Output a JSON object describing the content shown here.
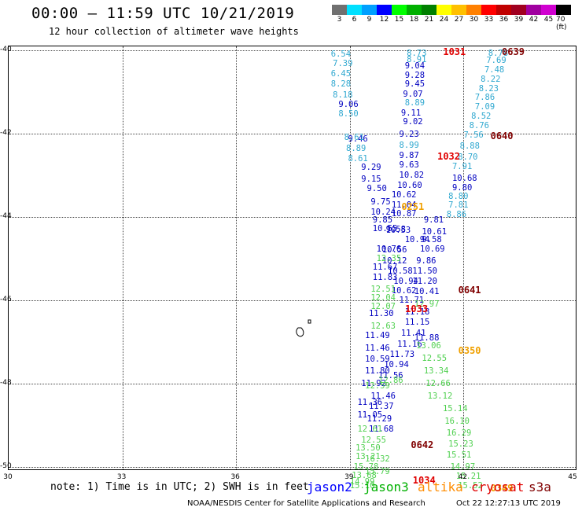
{
  "header": {
    "title": "00:00 – 11:59 UTC 10/21/2019",
    "subtitle": "12 hour collection of altimeter wave heights"
  },
  "scale": [
    {
      "label": "3",
      "color": "#707070"
    },
    {
      "label": "6",
      "color": "#00e0ff"
    },
    {
      "label": "9",
      "color": "#00a0ff"
    },
    {
      "label": "12",
      "color": "#0000ff"
    },
    {
      "label": "15",
      "color": "#00ff00"
    },
    {
      "label": "18",
      "color": "#00b000"
    },
    {
      "label": "21",
      "color": "#008000"
    },
    {
      "label": "24",
      "color": "#ffff00"
    },
    {
      "label": "27",
      "color": "#ffc000"
    },
    {
      "label": "30",
      "color": "#ff8000"
    },
    {
      "label": "33",
      "color": "#ff0000"
    },
    {
      "label": "36",
      "color": "#c00000"
    },
    {
      "label": "39",
      "color": "#a00020"
    },
    {
      "label": "42",
      "color": "#a000a0"
    },
    {
      "label": "45",
      "color": "#d000d0"
    },
    {
      "label": "70 (ft)",
      "color": "#000000"
    }
  ],
  "map": {
    "lat_labels": [
      "-40",
      "-42",
      "-44",
      "-46",
      "-48",
      "-50"
    ],
    "lon_labels": [
      "30",
      "33",
      "36",
      "39",
      "42",
      "45"
    ],
    "island_label": "D",
    "series": [
      {
        "name": "jason2",
        "color": "#0000c0",
        "obs": [
          {
            "lat": -41.3,
            "lon": 38.95,
            "v": "9.06"
          },
          {
            "lat": -42.13,
            "lon": 39.2,
            "v": "9.46"
          },
          {
            "lat": -42.82,
            "lon": 39.55,
            "v": "9.29"
          },
          {
            "lat": -43.1,
            "lon": 39.55,
            "v": "9.15"
          },
          {
            "lat": -43.32,
            "lon": 39.7,
            "v": "9.50"
          },
          {
            "lat": -43.65,
            "lon": 39.8,
            "v": "9.75"
          },
          {
            "lat": -43.88,
            "lon": 39.8,
            "v": "10.24"
          },
          {
            "lat": -44.07,
            "lon": 39.85,
            "v": "9.85"
          },
          {
            "lat": -44.28,
            "lon": 39.85,
            "v": "10.55"
          },
          {
            "lat": -44.78,
            "lon": 39.95,
            "v": "10.76"
          },
          {
            "lat": -45.2,
            "lon": 39.85,
            "v": "11.67"
          },
          {
            "lat": -45.45,
            "lon": 39.85,
            "v": "11.83"
          },
          {
            "lat": -46.32,
            "lon": 39.75,
            "v": "11.30"
          },
          {
            "lat": -46.85,
            "lon": 39.65,
            "v": "11.49"
          },
          {
            "lat": -47.15,
            "lon": 39.65,
            "v": "11.46"
          },
          {
            "lat": -47.42,
            "lon": 39.65,
            "v": "10.59"
          },
          {
            "lat": -47.7,
            "lon": 39.65,
            "v": "11.80"
          },
          {
            "lat": -48.0,
            "lon": 39.55,
            "v": "11.92"
          },
          {
            "lat": -48.45,
            "lon": 39.45,
            "v": "11.36"
          },
          {
            "lat": -48.75,
            "lon": 39.45,
            "v": "11.05"
          },
          {
            "lat": -44.3,
            "lon": 40.2,
            "v": "9.58"
          },
          {
            "lat": -44.32,
            "lon": 40.2,
            "v": "10.53"
          },
          {
            "lat": -44.8,
            "lon": 40.1,
            "v": "10.56"
          },
          {
            "lat": -45.05,
            "lon": 40.1,
            "v": "10.12"
          },
          {
            "lat": -45.3,
            "lon": 40.25,
            "v": "10.58"
          },
          {
            "lat": -45.55,
            "lon": 40.4,
            "v": "10.94"
          },
          {
            "lat": -45.78,
            "lon": 40.35,
            "v": "10.62"
          },
          {
            "lat": -46.0,
            "lon": 40.55,
            "v": "11.71"
          },
          {
            "lat": -46.28,
            "lon": 40.7,
            "v": "11.18"
          },
          {
            "lat": -46.52,
            "lon": 40.7,
            "v": "11.15"
          },
          {
            "lat": -46.8,
            "lon": 40.6,
            "v": "11.41"
          },
          {
            "lat": -47.05,
            "lon": 40.5,
            "v": "11.16"
          },
          {
            "lat": -47.3,
            "lon": 40.3,
            "v": "11.73"
          },
          {
            "lat": -47.55,
            "lon": 40.15,
            "v": "10.94"
          },
          {
            "lat": -47.82,
            "lon": 40.0,
            "v": "11.56"
          },
          {
            "lat": -48.3,
            "lon": 39.8,
            "v": "11.46"
          },
          {
            "lat": -48.55,
            "lon": 39.75,
            "v": "11.37"
          },
          {
            "lat": -48.85,
            "lon": 39.7,
            "v": "11.29"
          },
          {
            "lat": -49.1,
            "lon": 39.75,
            "v": "11.68"
          },
          {
            "lat": -40.38,
            "lon": 40.7,
            "v": "9.04"
          },
          {
            "lat": -40.6,
            "lon": 40.7,
            "v": "9.28"
          },
          {
            "lat": -40.82,
            "lon": 40.7,
            "v": "9.45"
          },
          {
            "lat": -41.05,
            "lon": 40.65,
            "v": "9.07"
          },
          {
            "lat": -41.5,
            "lon": 40.6,
            "v": "9.11"
          },
          {
            "lat": -41.72,
            "lon": 40.65,
            "v": "9.02"
          },
          {
            "lat": -42.02,
            "lon": 40.55,
            "v": "9.23"
          },
          {
            "lat": -42.52,
            "lon": 40.55,
            "v": "9.87"
          },
          {
            "lat": -42.76,
            "lon": 40.55,
            "v": "9.63"
          },
          {
            "lat": -43.0,
            "lon": 40.55,
            "v": "10.82"
          },
          {
            "lat": -43.25,
            "lon": 40.5,
            "v": "10.60"
          },
          {
            "lat": -43.48,
            "lon": 40.35,
            "v": "10.62"
          },
          {
            "lat": -43.72,
            "lon": 40.35,
            "v": "11.04"
          },
          {
            "lat": -43.93,
            "lon": 40.35,
            "v": "10.87"
          },
          {
            "lat": -44.55,
            "lon": 40.7,
            "v": "10.94"
          },
          {
            "lat": -45.8,
            "lon": 40.95,
            "v": "10.41"
          },
          {
            "lat": -45.55,
            "lon": 40.9,
            "v": "11.20"
          },
          {
            "lat": -45.3,
            "lon": 40.9,
            "v": "11.50"
          },
          {
            "lat": -45.05,
            "lon": 41.0,
            "v": "9.86"
          },
          {
            "lat": -44.78,
            "lon": 41.1,
            "v": "10.69"
          },
          {
            "lat": -44.55,
            "lon": 41.15,
            "v": "9.58"
          },
          {
            "lat": -44.35,
            "lon": 41.15,
            "v": "10.61"
          },
          {
            "lat": -44.08,
            "lon": 41.2,
            "v": "9.81"
          },
          {
            "lat": -43.08,
            "lon": 41.95,
            "v": "10.68"
          },
          {
            "lat": -43.3,
            "lon": 41.95,
            "v": "9.80"
          },
          {
            "lat": -46.9,
            "lon": 40.95,
            "v": "11.88"
          }
        ]
      },
      {
        "name": "jason3",
        "color": "#50d050",
        "obs": [
          {
            "lat": -45.0,
            "lon": 39.95,
            "v": "12.35"
          },
          {
            "lat": -45.73,
            "lon": 39.8,
            "v": "12.51"
          },
          {
            "lat": -45.95,
            "lon": 39.8,
            "v": "12.04"
          },
          {
            "lat": -46.15,
            "lon": 39.8,
            "v": "12.07"
          },
          {
            "lat": -46.62,
            "lon": 39.8,
            "v": "12.63"
          },
          {
            "lat": -48.05,
            "lon": 39.65,
            "v": "12.59"
          },
          {
            "lat": -47.92,
            "lon": 40.0,
            "v": "12.86"
          },
          {
            "lat": -49.1,
            "lon": 39.45,
            "v": "12.61"
          },
          {
            "lat": -49.35,
            "lon": 39.55,
            "v": "12.55"
          },
          {
            "lat": -49.55,
            "lon": 39.4,
            "v": "13.50"
          },
          {
            "lat": -49.75,
            "lon": 39.4,
            "v": "13.21"
          },
          {
            "lat": -50.0,
            "lon": 39.35,
            "v": "15.78"
          },
          {
            "lat": -50.2,
            "lon": 39.3,
            "v": "13.68"
          },
          {
            "lat": -50.35,
            "lon": 39.25,
            "v": "14.99"
          },
          {
            "lat": -49.82,
            "lon": 39.65,
            "v": "16.32"
          },
          {
            "lat": -50.12,
            "lon": 39.65,
            "v": "15.79"
          },
          {
            "lat": -50.45,
            "lon": 39.25,
            "v": "15.10"
          },
          {
            "lat": -46.1,
            "lon": 40.95,
            "v": "12.97"
          },
          {
            "lat": -47.1,
            "lon": 41.0,
            "v": "13.06"
          },
          {
            "lat": -47.4,
            "lon": 41.15,
            "v": "12.55"
          },
          {
            "lat": -47.7,
            "lon": 41.2,
            "v": "13.34"
          },
          {
            "lat": -48.0,
            "lon": 41.25,
            "v": "12.66"
          },
          {
            "lat": -48.3,
            "lon": 41.3,
            "v": "13.12"
          },
          {
            "lat": -48.6,
            "lon": 41.7,
            "v": "15.14"
          },
          {
            "lat": -48.9,
            "lon": 41.75,
            "v": "16.10"
          },
          {
            "lat": -49.18,
            "lon": 41.8,
            "v": "16.29"
          },
          {
            "lat": -49.45,
            "lon": 41.85,
            "v": "15.23"
          },
          {
            "lat": -49.72,
            "lon": 41.8,
            "v": "15.51"
          },
          {
            "lat": -50.0,
            "lon": 41.9,
            "v": "14.97"
          },
          {
            "lat": -50.22,
            "lon": 42.05,
            "v": "15.21"
          },
          {
            "lat": -50.45,
            "lon": 42.1,
            "v": "15.52"
          }
        ]
      },
      {
        "name": "s3a",
        "color": "#30a8d0",
        "obs": [
          {
            "lat": -40.1,
            "lon": 38.75,
            "v": "6.54"
          },
          {
            "lat": -40.33,
            "lon": 38.8,
            "v": "7.39"
          },
          {
            "lat": -40.57,
            "lon": 38.75,
            "v": "6.45"
          },
          {
            "lat": -40.82,
            "lon": 38.75,
            "v": "8.28"
          },
          {
            "lat": -41.07,
            "lon": 38.8,
            "v": "8.18"
          },
          {
            "lat": -41.52,
            "lon": 38.95,
            "v": "8.50"
          },
          {
            "lat": -42.1,
            "lon": 39.1,
            "v": "8.61"
          },
          {
            "lat": -42.35,
            "lon": 39.15,
            "v": "8.89"
          },
          {
            "lat": -42.6,
            "lon": 39.2,
            "v": "8.61"
          },
          {
            "lat": -40.08,
            "lon": 40.75,
            "v": "8.73"
          },
          {
            "lat": -40.22,
            "lon": 40.75,
            "v": "8.91"
          },
          {
            "lat": -41.27,
            "lon": 40.7,
            "v": "8.89"
          },
          {
            "lat": -42.28,
            "lon": 40.55,
            "v": "8.99"
          },
          {
            "lat": -40.08,
            "lon": 42.9,
            "v": "8.78"
          },
          {
            "lat": -40.25,
            "lon": 42.85,
            "v": "7.69"
          },
          {
            "lat": -40.48,
            "lon": 42.8,
            "v": "7.48"
          },
          {
            "lat": -40.7,
            "lon": 42.7,
            "v": "8.22"
          },
          {
            "lat": -40.92,
            "lon": 42.65,
            "v": "8.23"
          },
          {
            "lat": -41.14,
            "lon": 42.55,
            "v": "7.86"
          },
          {
            "lat": -41.36,
            "lon": 42.55,
            "v": "7.09"
          },
          {
            "lat": -41.59,
            "lon": 42.45,
            "v": "8.52"
          },
          {
            "lat": -41.82,
            "lon": 42.4,
            "v": "8.76"
          },
          {
            "lat": -42.03,
            "lon": 42.25,
            "v": "7.56"
          },
          {
            "lat": -42.3,
            "lon": 42.15,
            "v": "8.88"
          },
          {
            "lat": -42.56,
            "lon": 42.1,
            "v": "8.70"
          },
          {
            "lat": -42.8,
            "lon": 41.95,
            "v": "7.91"
          },
          {
            "lat": -43.5,
            "lon": 41.85,
            "v": "8.80"
          },
          {
            "lat": -43.72,
            "lon": 41.85,
            "v": "7.81"
          },
          {
            "lat": -43.95,
            "lon": 41.8,
            "v": "8.86"
          }
        ]
      }
    ],
    "time_labels": [
      {
        "lat": -40.03,
        "lon": 41.75,
        "t": "1031",
        "color": "#e00000"
      },
      {
        "lat": -40.03,
        "lon": 43.3,
        "t": "0639",
        "color": "#800000"
      },
      {
        "lat": -42.05,
        "lon": 43.0,
        "t": "0640",
        "color": "#800000"
      },
      {
        "lat": -42.55,
        "lon": 41.6,
        "t": "1032",
        "color": "#e00000"
      },
      {
        "lat": -43.75,
        "lon": 40.65,
        "t": "0251",
        "color": "#f0a000"
      },
      {
        "lat": -45.75,
        "lon": 42.15,
        "t": "0641",
        "color": "#800000"
      },
      {
        "lat": -46.2,
        "lon": 40.75,
        "t": "1033",
        "color": "#e00000"
      },
      {
        "lat": -47.2,
        "lon": 42.15,
        "t": "0350",
        "color": "#f0a000"
      },
      {
        "lat": -49.48,
        "lon": 40.9,
        "t": "0642",
        "color": "#800000"
      },
      {
        "lat": -50.33,
        "lon": 40.95,
        "t": "1034",
        "color": "#e00000"
      },
      {
        "lat": -50.5,
        "lon": 43.0,
        "t": "0349",
        "color": "#f0a000"
      }
    ]
  },
  "notes": {
    "note": "note: 1) Time is in UTC; 2) SWH is in feet",
    "legend": [
      {
        "label": "jason2",
        "color": "#0000ff"
      },
      {
        "label": "jason3",
        "color": "#00b000"
      },
      {
        "label": "altika",
        "color": "#ff8c00"
      },
      {
        "label": "cryosat",
        "color": "#e00000"
      },
      {
        "label": "s3a",
        "color": "#800000"
      }
    ],
    "footer": "NOAA/NESDIS Center for Satellite Applications and Research",
    "stamp": "Oct 22 12:27:13 UTC 2019"
  }
}
